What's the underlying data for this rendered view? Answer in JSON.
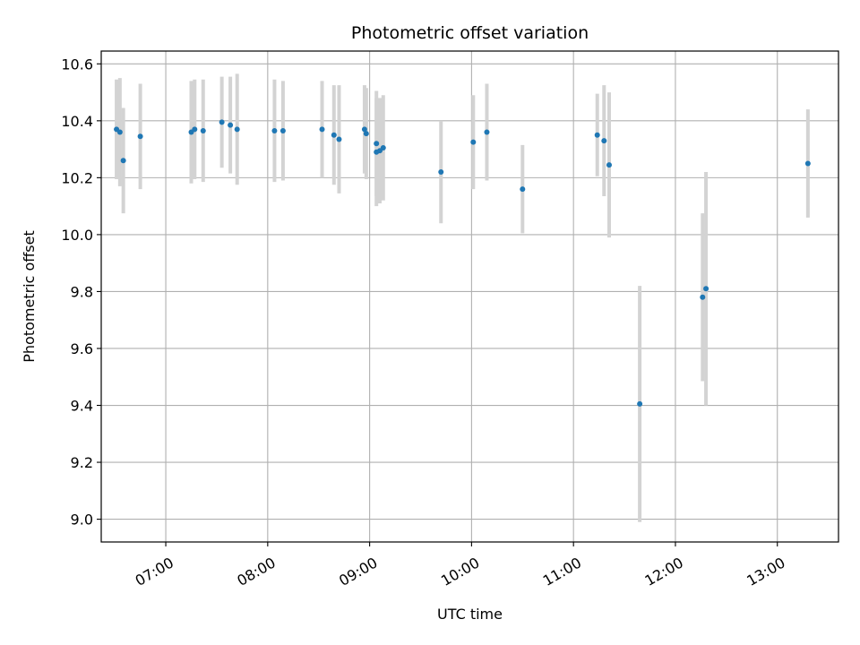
{
  "chart_data": {
    "type": "scatter",
    "title": "Photometric offset variation",
    "xlabel": "UTC time",
    "ylabel": "Photometric offset",
    "x_axis_kind": "time",
    "xlim": [
      "06:22",
      "13:36"
    ],
    "ylim": [
      8.92,
      10.645
    ],
    "x_ticks": [
      "07:00",
      "08:00",
      "09:00",
      "10:00",
      "11:00",
      "12:00",
      "13:00"
    ],
    "y_ticks": [
      9.0,
      9.2,
      9.4,
      9.6,
      9.8,
      10.0,
      10.2,
      10.4,
      10.6
    ],
    "y_tick_labels": [
      "9.0",
      "9.2",
      "9.4",
      "9.6",
      "9.8",
      "10.0",
      "10.2",
      "10.4",
      "10.6"
    ],
    "grid": true,
    "colors": {
      "points": "#1f77b4",
      "error_bars": "#d3d3d3",
      "grid": "#b0b0b0"
    },
    "series": [
      {
        "points": [
          {
            "x": "06:31",
            "y": 10.37,
            "err": 0.175
          },
          {
            "x": "06:33",
            "y": 10.36,
            "err": 0.19
          },
          {
            "x": "06:35",
            "y": 10.26,
            "err": 0.185
          },
          {
            "x": "06:45",
            "y": 10.345,
            "err": 0.185
          },
          {
            "x": "07:15",
            "y": 10.36,
            "err": 0.18
          },
          {
            "x": "07:17",
            "y": 10.37,
            "err": 0.175
          },
          {
            "x": "07:22",
            "y": 10.365,
            "err": 0.18
          },
          {
            "x": "07:33",
            "y": 10.395,
            "err": 0.16
          },
          {
            "x": "07:38",
            "y": 10.385,
            "err": 0.17
          },
          {
            "x": "07:42",
            "y": 10.37,
            "err": 0.195
          },
          {
            "x": "08:04",
            "y": 10.365,
            "err": 0.18
          },
          {
            "x": "08:09",
            "y": 10.365,
            "err": 0.175
          },
          {
            "x": "08:32",
            "y": 10.37,
            "err": 0.17
          },
          {
            "x": "08:39",
            "y": 10.35,
            "err": 0.175
          },
          {
            "x": "08:42",
            "y": 10.335,
            "err": 0.19
          },
          {
            "x": "08:57",
            "y": 10.37,
            "err": 0.155
          },
          {
            "x": "08:58",
            "y": 10.355,
            "err": 0.16
          },
          {
            "x": "09:04",
            "y": 10.29,
            "err": 0.19
          },
          {
            "x": "09:04",
            "y": 10.32,
            "err": 0.185
          },
          {
            "x": "09:06",
            "y": 10.295,
            "err": 0.185
          },
          {
            "x": "09:08",
            "y": 10.305,
            "err": 0.185
          },
          {
            "x": "09:42",
            "y": 10.22,
            "err": 0.18
          },
          {
            "x": "10:01",
            "y": 10.325,
            "err": 0.165
          },
          {
            "x": "10:09",
            "y": 10.36,
            "err": 0.17
          },
          {
            "x": "10:30",
            "y": 10.16,
            "err": 0.155
          },
          {
            "x": "11:14",
            "y": 10.35,
            "err": 0.145
          },
          {
            "x": "11:18",
            "y": 10.33,
            "err": 0.195
          },
          {
            "x": "11:21",
            "y": 10.245,
            "err": 0.255
          },
          {
            "x": "11:39",
            "y": 9.405,
            "err": 0.415
          },
          {
            "x": "12:16",
            "y": 9.78,
            "err": 0.295
          },
          {
            "x": "12:18",
            "y": 9.81,
            "err": 0.41
          },
          {
            "x": "13:18",
            "y": 10.25,
            "err": 0.19
          }
        ]
      }
    ]
  }
}
